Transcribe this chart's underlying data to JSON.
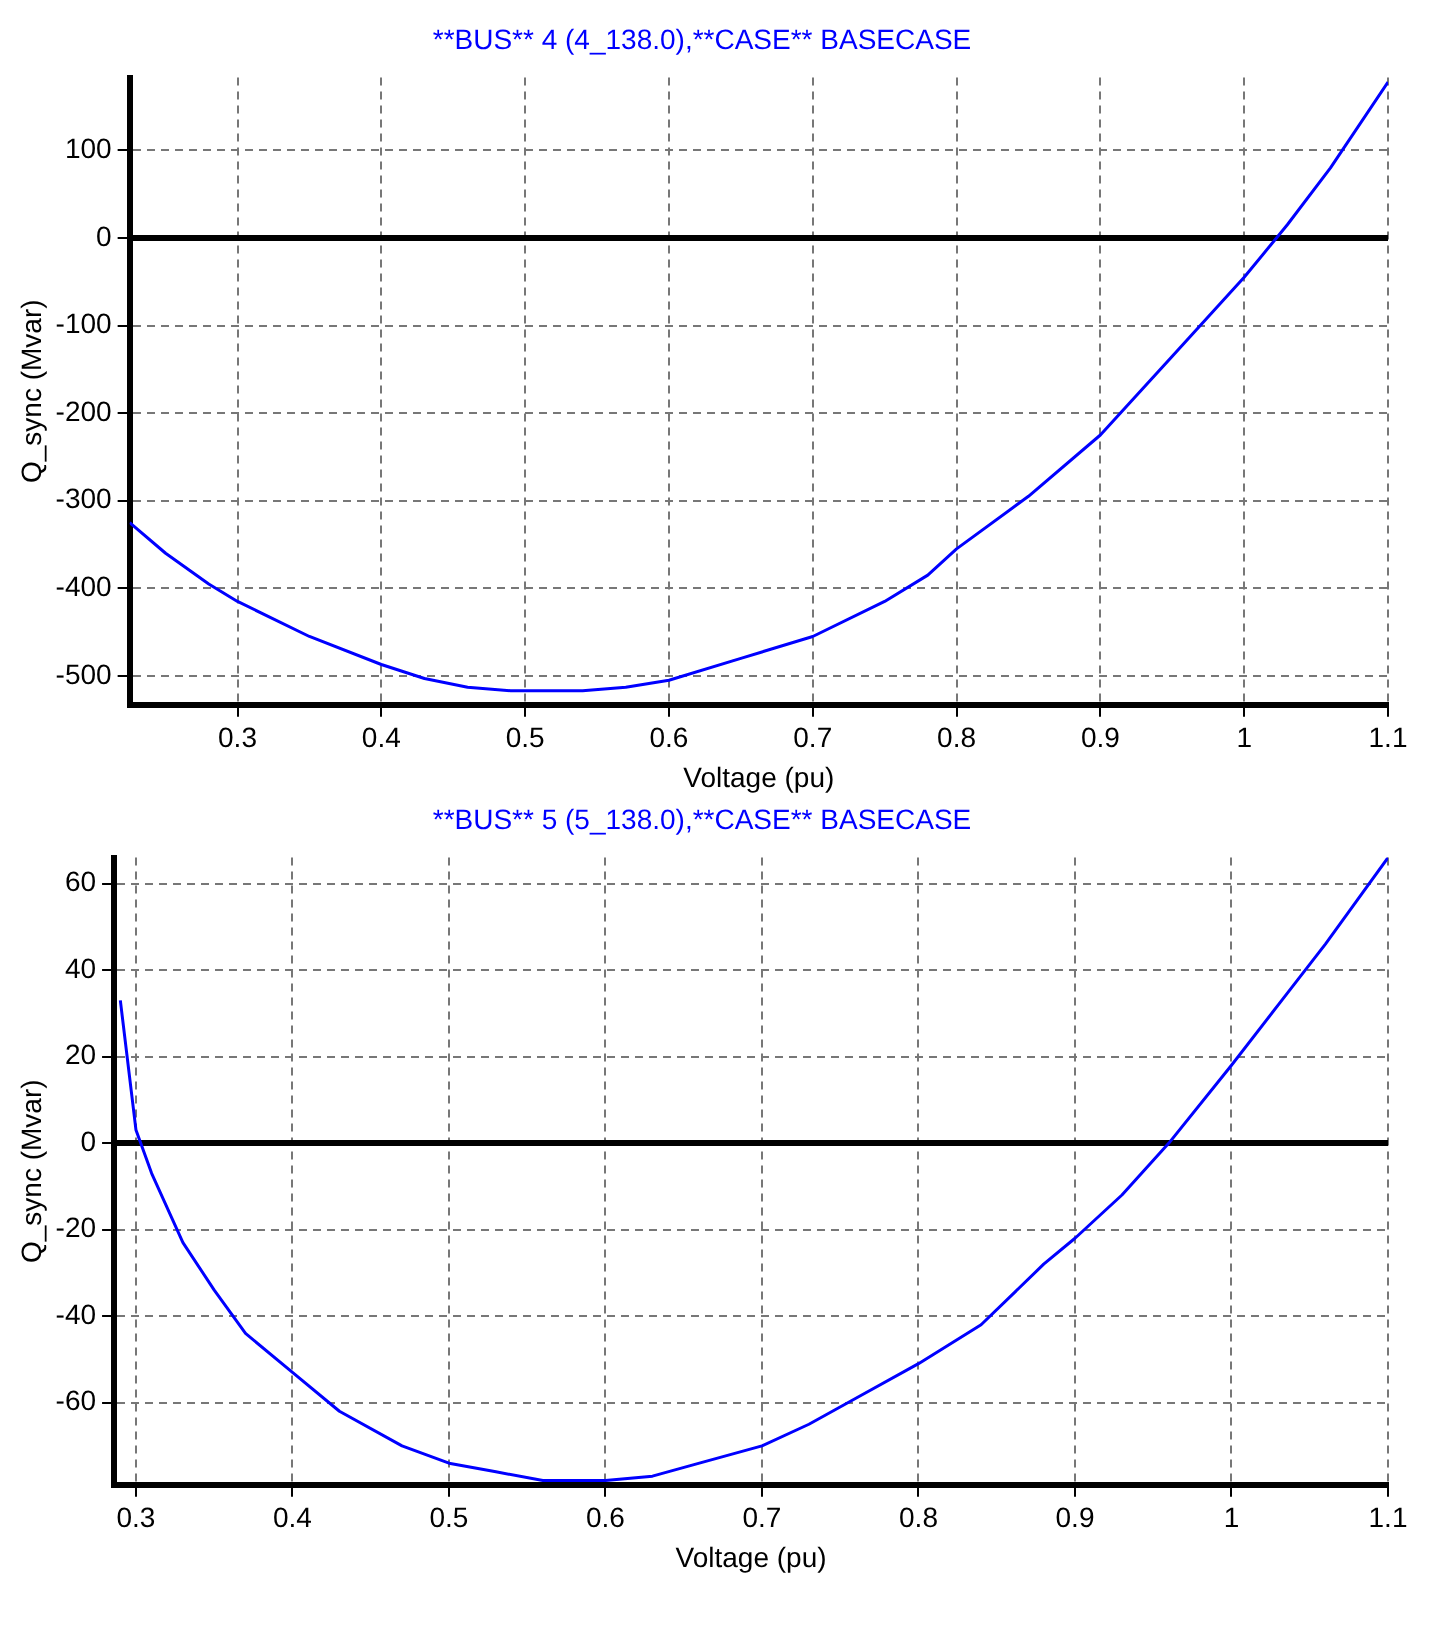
{
  "chart_data": [
    {
      "type": "line",
      "title": "**BUS** 4 (4_138.0),**CASE** BASECASE",
      "xlabel": "Voltage (pu)",
      "ylabel": "Q_sync (Mvar)",
      "series": [
        {
          "color": "#0000ff",
          "x": [
            0.225,
            0.25,
            0.28,
            0.3,
            0.35,
            0.4,
            0.43,
            0.46,
            0.49,
            0.54,
            0.57,
            0.6,
            0.65,
            0.7,
            0.75,
            0.78,
            0.8,
            0.85,
            0.9,
            0.95,
            1.0,
            1.03,
            1.06,
            1.1
          ],
          "values": [
            -325,
            -360,
            -395,
            -415,
            -455,
            -487,
            -503,
            -513,
            -517,
            -517,
            -513,
            -505,
            -480,
            -455,
            -415,
            -385,
            -355,
            -295,
            -225,
            -135,
            -45,
            15,
            80,
            178
          ]
        }
      ],
      "xlim": [
        0.225,
        1.1
      ],
      "xticks": [
        0.3,
        0.4,
        0.5,
        0.6,
        0.7,
        0.8,
        0.9,
        1,
        1.1
      ],
      "ylim": [
        -533,
        183
      ],
      "yticks": [
        -500,
        -400,
        -300,
        -200,
        -100,
        0,
        100
      ],
      "grid": true,
      "marker": "none",
      "line_style": "solid",
      "legend": false,
      "ref_lines": [
        {
          "axis": "y",
          "value": 0,
          "color": "#000000"
        }
      ]
    },
    {
      "type": "line",
      "title": "**BUS** 5 (5_138.0),**CASE** BASECASE",
      "xlabel": "Voltage (pu)",
      "ylabel": "Q_sync (Mvar)",
      "series": [
        {
          "color": "#0000ff",
          "x": [
            0.29,
            0.3,
            0.31,
            0.33,
            0.35,
            0.37,
            0.4,
            0.43,
            0.47,
            0.5,
            0.53,
            0.56,
            0.6,
            0.63,
            0.66,
            0.7,
            0.73,
            0.76,
            0.8,
            0.84,
            0.88,
            0.9,
            0.93,
            0.96,
            1.0,
            1.03,
            1.06,
            1.08,
            1.1
          ],
          "values": [
            33,
            3,
            -7,
            -23,
            -34,
            -44,
            -53,
            -62,
            -70,
            -74,
            -76,
            -78,
            -78,
            -77,
            -74,
            -70,
            -65,
            -59,
            -51,
            -42,
            -28,
            -22,
            -12,
            0,
            18,
            32,
            46,
            56,
            66
          ]
        }
      ],
      "xlim": [
        0.286,
        1.1
      ],
      "xticks": [
        0.3,
        0.4,
        0.5,
        0.6,
        0.7,
        0.8,
        0.9,
        1,
        1.1
      ],
      "ylim": [
        -79,
        66
      ],
      "yticks": [
        -60,
        -40,
        -20,
        0,
        20,
        40,
        60
      ],
      "grid": true,
      "marker": "none",
      "line_style": "solid",
      "legend": false,
      "ref_lines": [
        {
          "axis": "y",
          "value": 0,
          "color": "#000000"
        }
      ]
    }
  ]
}
